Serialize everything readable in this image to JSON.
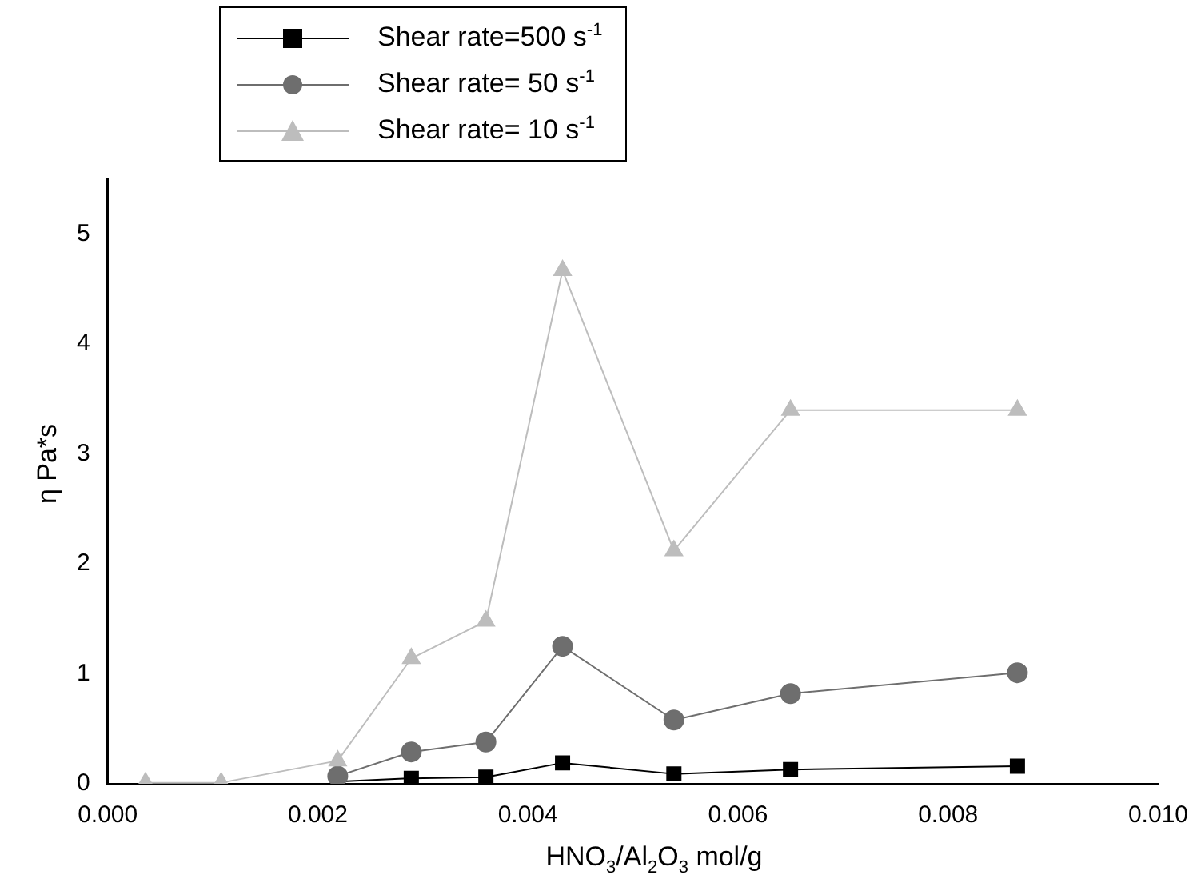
{
  "chart_data": {
    "type": "line",
    "xlabel": "HNO$_{3}$/Al$_{2}$O$_{3}$   mol/g",
    "ylabel": "η Pa*s",
    "x": [
      0.00036,
      0.00108,
      0.00219,
      0.00289,
      0.0036,
      0.00433,
      0.00539,
      0.0065,
      0.00866
    ],
    "series": [
      {
        "name": "Shear rate=500 s$^{-1}$",
        "color": "#000000",
        "marker": "square",
        "values": [
          null,
          null,
          0.02,
          0.05,
          0.06,
          0.19,
          0.09,
          0.13,
          0.16
        ]
      },
      {
        "name": "Shear rate= 50 s$^{-1}$",
        "color": "#6e6e6e",
        "marker": "circle",
        "values": [
          null,
          null,
          0.07,
          0.29,
          0.38,
          1.25,
          0.58,
          0.82,
          1.01
        ]
      },
      {
        "name": "Shear rate= 10 s$^{-1}$",
        "color": "#bdbdbd",
        "marker": "triangle",
        "values": [
          0.01,
          0.01,
          0.21,
          1.14,
          1.48,
          4.67,
          2.12,
          3.4,
          3.4
        ]
      }
    ],
    "xlim": [
      0,
      0.01
    ],
    "xticks": [
      {
        "value": 0,
        "label": "0.000"
      },
      {
        "value": 0.002,
        "label": "0.002"
      },
      {
        "value": 0.004,
        "label": "0.004"
      },
      {
        "value": 0.006,
        "label": "0.006"
      },
      {
        "value": 0.008,
        "label": "0.008"
      },
      {
        "value": 0.01,
        "label": "0.010"
      }
    ],
    "ylim": [
      0,
      5.5
    ],
    "yticks": [
      0,
      1,
      2,
      3,
      4,
      5
    ],
    "grid": false,
    "legend": "top left"
  }
}
